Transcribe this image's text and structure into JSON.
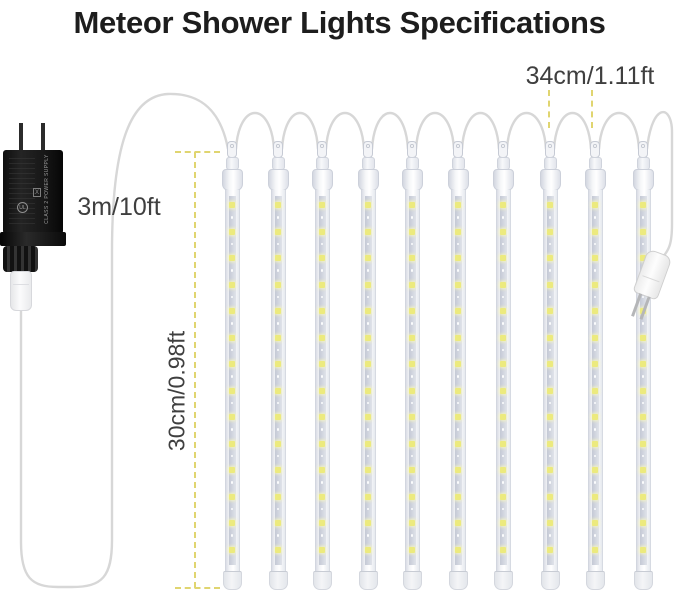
{
  "title": "Meteor Shower Lights Specifications",
  "annotations": {
    "cable_length_label": "3m/10ft",
    "tube_length_label": "30cm/0.98ft",
    "tube_spacing_label": "34cm/1.11ft"
  },
  "adapter": {
    "label_text": "CLASS 2 POWER SUPPLY",
    "cert_mark": "UL",
    "weee_mark": "X"
  },
  "lights": {
    "tube_count": 10,
    "leds_per_tube": 14
  },
  "colors": {
    "accent_dash": "#e0d570",
    "led_yellow": "#ecea7e",
    "cable_gray": "#d7d7d7",
    "label_text": "#3f3f3f",
    "title_text": "#1d1d1d"
  }
}
